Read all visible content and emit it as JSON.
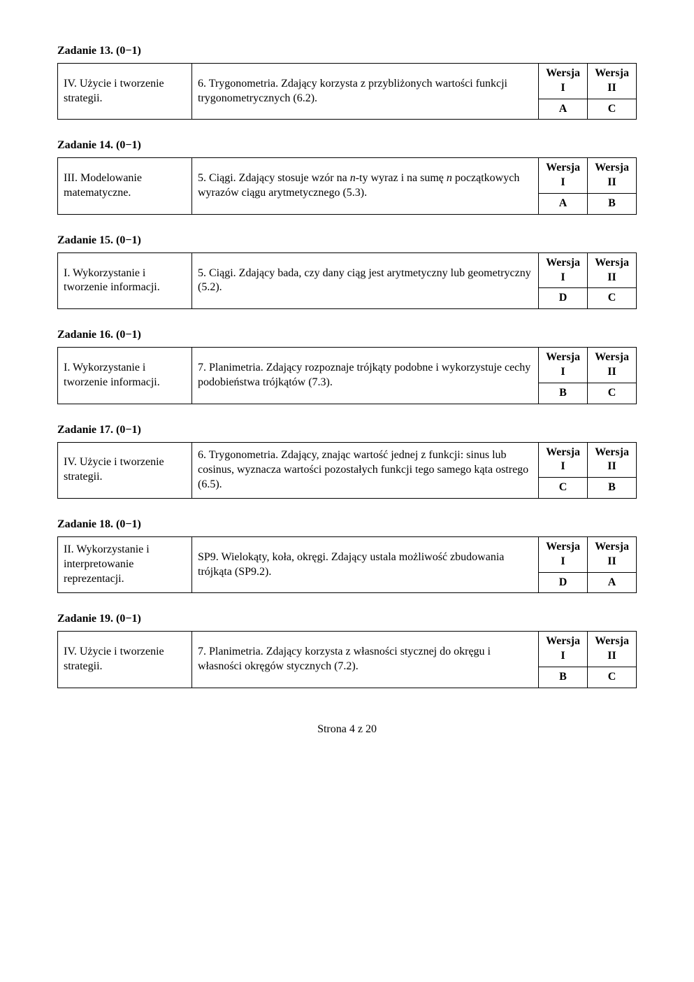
{
  "tasks": [
    {
      "heading": "Zadanie 13. (0−1)",
      "leftCol": "IV. Użycie i tworzenie strategii.",
      "midCol": "6. Trygonometria. Zdający korzysta z przybliżonych wartości funkcji trygonometrycznych (6.2).",
      "verLabel1": "Wersja I",
      "verLabel2": "Wersja II",
      "val1": "A",
      "val2": "C"
    },
    {
      "heading": "Zadanie 14. (0−1)",
      "leftCol": "III. Modelowanie matematyczne.",
      "midCol": "5. Ciągi. Zdający stosuje wzór na <em class=\"nvar\">n</em>-ty wyraz i  na sumę <em class=\"nvar\">n</em> początkowych wyrazów ciągu arytmetycznego (5.3).",
      "verLabel1": "Wersja I",
      "verLabel2": "Wersja II",
      "val1": "A",
      "val2": "B"
    },
    {
      "heading": "Zadanie 15. (0−1)",
      "leftCol": "I. Wykorzystanie i tworzenie informacji.",
      "midCol": "5. Ciągi. Zdający bada, czy dany ciąg jest arytmetyczny lub geometryczny (5.2).",
      "verLabel1": "Wersja I",
      "verLabel2": "Wersja II",
      "val1": "D",
      "val2": "C"
    },
    {
      "heading": "Zadanie 16. (0−1)",
      "leftCol": "I. Wykorzystanie i tworzenie informacji.",
      "midCol": "7. Planimetria. Zdający rozpoznaje trójkąty podobne i wykorzystuje cechy podobieństwa trójkątów (7.3).",
      "verLabel1": "Wersja I",
      "verLabel2": "Wersja II",
      "val1": "B",
      "val2": "C"
    },
    {
      "heading": "Zadanie 17. (0−1)",
      "leftCol": "IV. Użycie i tworzenie strategii.",
      "midCol": "6. Trygonometria. Zdający, znając wartość jednej z funkcji: sinus lub cosinus, wyznacza wartości pozostałych funkcji tego samego kąta ostrego (6.5).",
      "verLabel1": "Wersja I",
      "verLabel2": "Wersja II",
      "val1": "C",
      "val2": "B"
    },
    {
      "heading": "Zadanie 18. (0−1)",
      "leftCol": "II. Wykorzystanie i interpretowanie reprezentacji.",
      "midCol": "SP9. Wielokąty, koła, okręgi. Zdający ustala możliwość zbudowania trójkąta (SP9.2).",
      "verLabel1": "Wersja I",
      "verLabel2": "Wersja II",
      "val1": "D",
      "val2": "A"
    },
    {
      "heading": "Zadanie 19. (0−1)",
      "leftCol": "IV. Użycie i tworzenie strategii.",
      "midCol": "7. Planimetria. Zdający korzysta z własności stycznej do okręgu i własności okręgów stycznych (7.2).",
      "verLabel1": "Wersja I",
      "verLabel2": "Wersja II",
      "val1": "B",
      "val2": "C"
    }
  ],
  "footer": "Strona 4 z 20"
}
